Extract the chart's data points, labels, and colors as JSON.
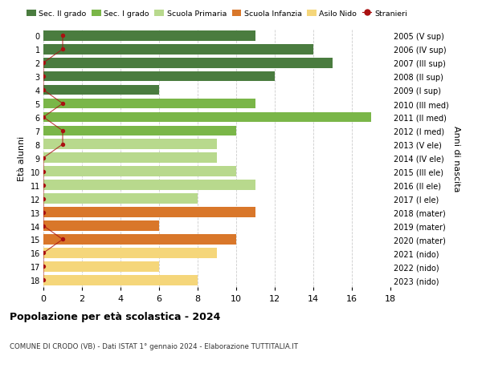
{
  "ages": [
    18,
    17,
    16,
    15,
    14,
    13,
    12,
    11,
    10,
    9,
    8,
    7,
    6,
    5,
    4,
    3,
    2,
    1,
    0
  ],
  "right_labels": [
    "2005 (V sup)",
    "2006 (IV sup)",
    "2007 (III sup)",
    "2008 (II sup)",
    "2009 (I sup)",
    "2010 (III med)",
    "2011 (II med)",
    "2012 (I med)",
    "2013 (V ele)",
    "2014 (IV ele)",
    "2015 (III ele)",
    "2016 (II ele)",
    "2017 (I ele)",
    "2018 (mater)",
    "2019 (mater)",
    "2020 (mater)",
    "2021 (nido)",
    "2022 (nido)",
    "2023 (nido)"
  ],
  "bar_values": [
    11,
    14,
    15,
    12,
    6,
    11,
    17,
    10,
    9,
    9,
    10,
    11,
    8,
    11,
    6,
    10,
    9,
    6,
    8
  ],
  "bar_colors": [
    "#4a7c3f",
    "#4a7c3f",
    "#4a7c3f",
    "#4a7c3f",
    "#4a7c3f",
    "#7ab648",
    "#7ab648",
    "#7ab648",
    "#b8d98d",
    "#b8d98d",
    "#b8d98d",
    "#b8d98d",
    "#b8d98d",
    "#d9772a",
    "#d9772a",
    "#d9772a",
    "#f5d67a",
    "#f5d67a",
    "#f5d67a"
  ],
  "stranieri_values": [
    1,
    1,
    0,
    0,
    0,
    1,
    0,
    1,
    1,
    0,
    0,
    0,
    0,
    0,
    0,
    1,
    0,
    0,
    0
  ],
  "ylabel_left": "Età alunni",
  "ylabel_right": "Anni di nascita",
  "xlim": [
    0,
    18
  ],
  "xticks": [
    0,
    2,
    4,
    6,
    8,
    10,
    12,
    14,
    16,
    18
  ],
  "title_main": "Popolazione per età scolastica - 2024",
  "subtitle": "COMUNE DI CRODO (VB) - Dati ISTAT 1° gennaio 2024 - Elaborazione TUTTITALIA.IT",
  "legend_items": [
    {
      "label": "Sec. II grado",
      "color": "#4a7c3f"
    },
    {
      "label": "Sec. I grado",
      "color": "#7ab648"
    },
    {
      "label": "Scuola Primaria",
      "color": "#b8d98d"
    },
    {
      "label": "Scuola Infanzia",
      "color": "#d9772a"
    },
    {
      "label": "Asilo Nido",
      "color": "#f5d67a"
    },
    {
      "label": "Stranieri",
      "color": "#aa1111"
    }
  ],
  "background_color": "#ffffff",
  "grid_color": "#cccccc"
}
